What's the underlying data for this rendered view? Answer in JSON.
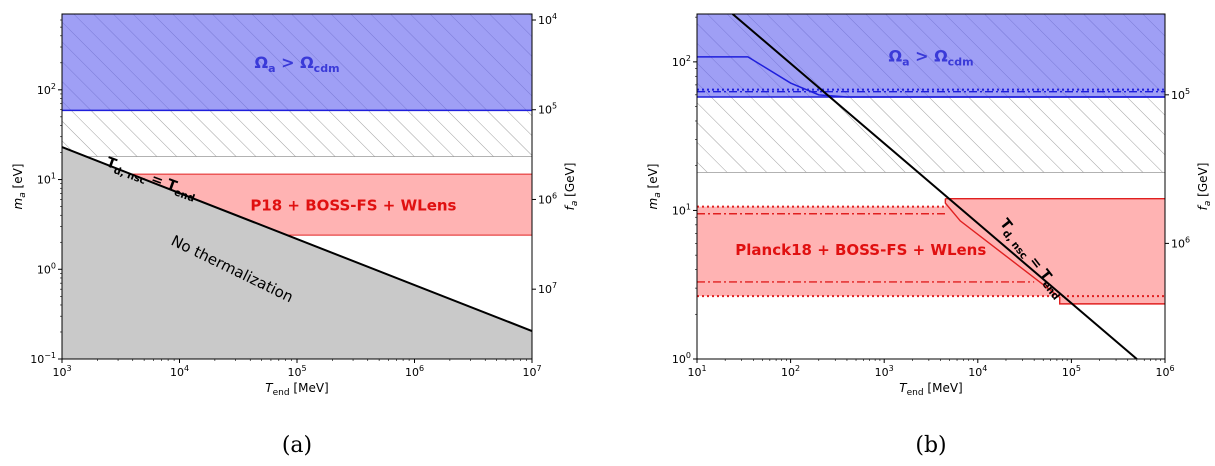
{
  "chart_data": [
    {
      "type": "area",
      "panel": "a",
      "caption": "(a)",
      "xlabel": "T_end [MeV]",
      "ylabel": "m_a [eV]",
      "ylabel_right": "f_a [GeV]",
      "xscale": "log",
      "yscale": "log",
      "xlim": [
        1000,
        10000000
      ],
      "ylim": [
        0.1,
        700
      ],
      "x_ticks": [
        {
          "v": 1000,
          "b": "10",
          "e": "3"
        },
        {
          "v": 10000,
          "b": "10",
          "e": "4"
        },
        {
          "v": 100000,
          "b": "10",
          "e": "5"
        },
        {
          "v": 1000000,
          "b": "10",
          "e": "6"
        },
        {
          "v": 10000000,
          "b": "10",
          "e": "7"
        }
      ],
      "y_ticks": [
        {
          "v": 0.1,
          "b": "10",
          "e": "−1"
        },
        {
          "v": 1,
          "b": "10",
          "e": "0"
        },
        {
          "v": 10,
          "b": "10",
          "e": "1"
        },
        {
          "v": 100,
          "b": "10",
          "e": "2"
        }
      ],
      "right_ticks": [
        {
          "v": 600,
          "b": "10",
          "e": "4"
        },
        {
          "v": 60,
          "b": "10",
          "e": "5"
        },
        {
          "v": 6,
          "b": "10",
          "e": "6"
        },
        {
          "v": 0.6,
          "b": "10",
          "e": "7"
        }
      ],
      "regions": [
        {
          "name": "Omega_a > Omega_cdm",
          "label_main": "Ω",
          "label_sub": "a",
          "label_gt": " > Ω",
          "label_sub2": "cdm",
          "color": "#9f9ff5",
          "edge": "#1f1fdc",
          "m_min": 59,
          "m_max": 700
        },
        {
          "name": "hatched band",
          "m_min": 18,
          "m_max": 59
        },
        {
          "name": "P18 + BOSS-FS + WLens",
          "label": "P18 + BOSS-FS + WLens",
          "color": "#ffb3b3",
          "edge": "#e02020",
          "m_min": 2.4,
          "m_max": 11.5
        },
        {
          "name": "No thermalization",
          "label": "No thermalization",
          "color": "#c9c9c9"
        }
      ],
      "curve": {
        "name": "T_d,nsc = T_end",
        "label_main": "T",
        "label_sub": "d, nsc",
        "label_eq": " = T",
        "label_sub2": "end",
        "x": [
          1000,
          10000000
        ],
        "y": [
          23,
          0.205
        ]
      }
    },
    {
      "type": "area",
      "panel": "b",
      "caption": "(b)",
      "xlabel": "T_end [MeV]",
      "ylabel": "m_a [eV]",
      "ylabel_right": "f_a [GeV]",
      "xscale": "log",
      "yscale": "log",
      "xlim": [
        10,
        1000000
      ],
      "ylim": [
        1,
        210
      ],
      "x_ticks": [
        {
          "v": 10,
          "b": "10",
          "e": "1"
        },
        {
          "v": 100,
          "b": "10",
          "e": "2"
        },
        {
          "v": 1000,
          "b": "10",
          "e": "3"
        },
        {
          "v": 10000,
          "b": "10",
          "e": "4"
        },
        {
          "v": 100000,
          "b": "10",
          "e": "5"
        },
        {
          "v": 1000000,
          "b": "10",
          "e": "6"
        }
      ],
      "y_ticks": [
        {
          "v": 1,
          "b": "10",
          "e": "0"
        },
        {
          "v": 10,
          "b": "10",
          "e": "1"
        },
        {
          "v": 100,
          "b": "10",
          "e": "2"
        }
      ],
      "right_ticks": [
        {
          "v": 60,
          "b": "10",
          "e": "5"
        },
        {
          "v": 6,
          "b": "10",
          "e": "6"
        }
      ],
      "regions": [
        {
          "name": "Omega_a > Omega_cdm",
          "label_main": "Ω",
          "label_sub": "a",
          "label_gt": " > Ω",
          "label_sub2": "cdm",
          "color": "#9f9ff5",
          "edge": "#1f1fdc",
          "m_min": 58,
          "m_max": 210
        },
        {
          "name": "hatched band",
          "m_min": 18,
          "m_max": 58
        },
        {
          "name": "Planck18 + BOSS-FS + WLens",
          "label": "Planck18 + BOSS-FS + WLens",
          "color": "#ffb3b3",
          "edge": "#e02020",
          "m_min": 2.35,
          "m_max": 12
        }
      ],
      "curve": {
        "name": "T_d,nsc = T_end",
        "label_main": "T",
        "label_sub": "d, nsc",
        "label_eq": " = T",
        "label_sub2": "end",
        "x": [
          24,
          500000
        ],
        "y": [
          210,
          1
        ]
      },
      "blue_lines": {
        "solid": {
          "x": [
            10,
            35,
            100,
            200,
            400,
            1000000
          ],
          "y": [
            108,
            108,
            72,
            60,
            58,
            58
          ]
        },
        "dashdot": {
          "x": [
            10,
            1000000
          ],
          "y": [
            63,
            63
          ]
        },
        "dotted": {
          "x": [
            10,
            1000000
          ],
          "y": [
            65,
            65
          ]
        }
      },
      "red_lines": {
        "dashdot_upper": {
          "x": [
            10,
            4500
          ],
          "y": [
            9.5,
            9.5
          ]
        },
        "dashdot_lower": {
          "x": [
            10,
            40000
          ],
          "y": [
            3.3,
            3.3
          ]
        },
        "dotted_upper": {
          "x": [
            10,
            4500
          ],
          "y": [
            10.6,
            10.6
          ]
        },
        "dotted_lower": {
          "x": [
            10,
            1000000
          ],
          "y": [
            2.65,
            2.65
          ]
        },
        "solid_boundary": {
          "x": [
            4500,
            4500,
            6500,
            75000,
            75000,
            1000000
          ],
          "y": [
            12,
            11.2,
            8.5,
            2.6,
            2.35,
            2.35
          ]
        }
      }
    }
  ]
}
